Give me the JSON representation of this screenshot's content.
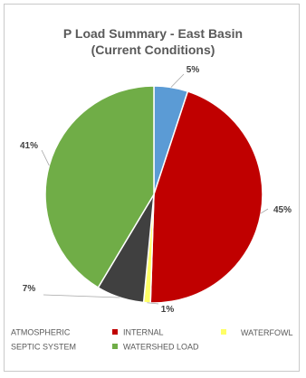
{
  "colors": {
    "atmospheric": "#5b9bd5",
    "internal": "#c00000",
    "waterfowl": "#ffff66",
    "septic": "#404040",
    "watershed": "#70ad47",
    "text": "#595959",
    "label_text": "#404040",
    "leader_line": "#a6a6a6",
    "border": "#c9c9c9"
  },
  "chart_data": {
    "type": "pie",
    "title": "P Load Summary - East Basin",
    "subtitle": "(Current Conditions)",
    "series": [
      {
        "name": "ATMOSPHERIC",
        "value": 5,
        "label": "5%",
        "color": "#5b9bd5"
      },
      {
        "name": "INTERNAL",
        "value": 45,
        "label": "45%",
        "color": "#c00000"
      },
      {
        "name": "WATERFOWL",
        "value": 1,
        "label": "1%",
        "color": "#ffff66"
      },
      {
        "name": "SEPTIC SYSTEM",
        "value": 7,
        "label": "7%",
        "color": "#404040"
      },
      {
        "name": "WATERSHED LOAD",
        "value": 41,
        "label": "41%",
        "color": "#70ad47"
      }
    ],
    "legend_position": "bottom"
  }
}
